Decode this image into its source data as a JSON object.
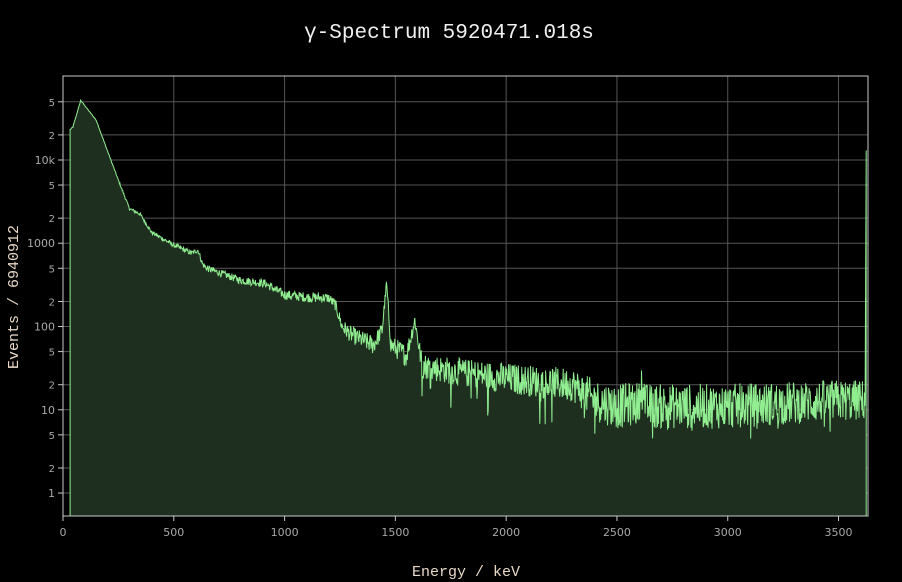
{
  "chart_data": {
    "type": "area",
    "title": "γ-Spectrum 5920471.018s",
    "xlabel": "Energy / keV",
    "ylabel": "Events / 6940912",
    "xlim": [
      0,
      3633
    ],
    "ylim": [
      0.53,
      102000
    ],
    "yscale": "log",
    "grid": true,
    "x_ticks": [
      "0",
      "500",
      "1000",
      "1500",
      "2000",
      "2500",
      "3000",
      "3500"
    ],
    "y_major_ticks": [
      {
        "v": 10000,
        "label": "10k"
      },
      {
        "v": 1000,
        "label": "1000"
      },
      {
        "v": 100,
        "label": "100"
      },
      {
        "v": 10,
        "label": "10"
      },
      {
        "v": 1,
        "label": "1"
      }
    ],
    "y_minor_labels": [
      "2",
      "5"
    ],
    "colors": {
      "line": "#90ee90",
      "fill": "#1f2f1f",
      "grid": "#555555",
      "frame": "#c8c8c8"
    },
    "points": [
      [
        32,
        23000
      ],
      [
        45,
        25000
      ],
      [
        80,
        52000
      ],
      [
        150,
        30000
      ],
      [
        200,
        13000
      ],
      [
        250,
        5700
      ],
      [
        300,
        2600
      ],
      [
        340,
        2300
      ],
      [
        350,
        2200
      ],
      [
        400,
        1350
      ],
      [
        500,
        950
      ],
      [
        580,
        760
      ],
      [
        609,
        830
      ],
      [
        630,
        560
      ],
      [
        650,
        500
      ],
      [
        800,
        360
      ],
      [
        911,
        330
      ],
      [
        1000,
        240
      ],
      [
        1100,
        225
      ],
      [
        1200,
        220
      ],
      [
        1230,
        180
      ],
      [
        1260,
        100
      ],
      [
        1300,
        80
      ],
      [
        1400,
        60
      ],
      [
        1440,
        90
      ],
      [
        1460,
        330
      ],
      [
        1480,
        60
      ],
      [
        1550,
        45
      ],
      [
        1588,
        120
      ],
      [
        1620,
        34
      ],
      [
        1700,
        31
      ],
      [
        1800,
        28
      ],
      [
        2000,
        24
      ],
      [
        2200,
        21
      ],
      [
        2300,
        20
      ],
      [
        2400,
        13
      ],
      [
        2500,
        11
      ],
      [
        2600,
        12
      ],
      [
        2614,
        26
      ],
      [
        2630,
        11
      ],
      [
        2700,
        11
      ],
      [
        3000,
        11
      ],
      [
        3500,
        13
      ],
      [
        3620,
        13
      ],
      [
        3625,
        13000
      ]
    ]
  }
}
